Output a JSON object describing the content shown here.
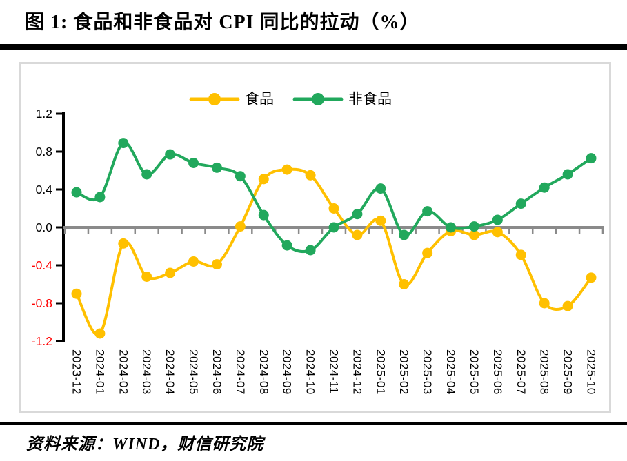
{
  "page": {
    "title": "图 1:  食品和非食品对 CPI 同比的拉动（%）",
    "source": "资料来源：WIND，财信研究院"
  },
  "chart_data": {
    "type": "line",
    "title": "食品和非食品对 CPI 同比的拉动（%）",
    "categories": [
      "2023-12",
      "2024-01",
      "2024-02",
      "2024-03",
      "2024-04",
      "2024-05",
      "2024-06",
      "2024-07",
      "2024-08",
      "2024-09",
      "2024-10",
      "2024-11",
      "2024-12",
      "2025-01",
      "2025-02",
      "2025-03",
      "2025-04",
      "2025-05",
      "2025-06",
      "2025-07",
      "2025-08",
      "2025-09",
      "2025-10"
    ],
    "series": [
      {
        "id": "food",
        "name": "食品",
        "color": "#FFC000",
        "values": [
          -0.7,
          -1.12,
          -0.17,
          -0.52,
          -0.48,
          -0.36,
          -0.39,
          0.01,
          0.51,
          0.61,
          0.55,
          0.2,
          -0.08,
          0.07,
          -0.6,
          -0.27,
          -0.04,
          -0.08,
          -0.05,
          -0.29,
          -0.8,
          -0.83,
          -0.53
        ]
      },
      {
        "id": "nonfood",
        "name": "非食品",
        "color": "#21A85C",
        "values": [
          0.37,
          0.32,
          0.89,
          0.56,
          0.77,
          0.68,
          0.63,
          0.54,
          0.13,
          -0.19,
          -0.24,
          0.0,
          0.14,
          0.41,
          -0.08,
          0.17,
          0.0,
          0.01,
          0.08,
          0.25,
          0.42,
          0.56,
          0.73
        ]
      }
    ],
    "ylim": [
      -1.2,
      1.2
    ],
    "yticks": [
      1.2,
      0.8,
      0.4,
      0.0,
      -0.4,
      -0.8,
      -1.2
    ],
    "ytick_positive_color": "#000000",
    "ytick_negative_color": "#FF0000",
    "zero_line_color": "#8A8A8A",
    "axis_color": "#000000",
    "smooth_lines": true,
    "grid": false,
    "legend_position": "top-center",
    "x_label_rotation_deg": 90
  }
}
